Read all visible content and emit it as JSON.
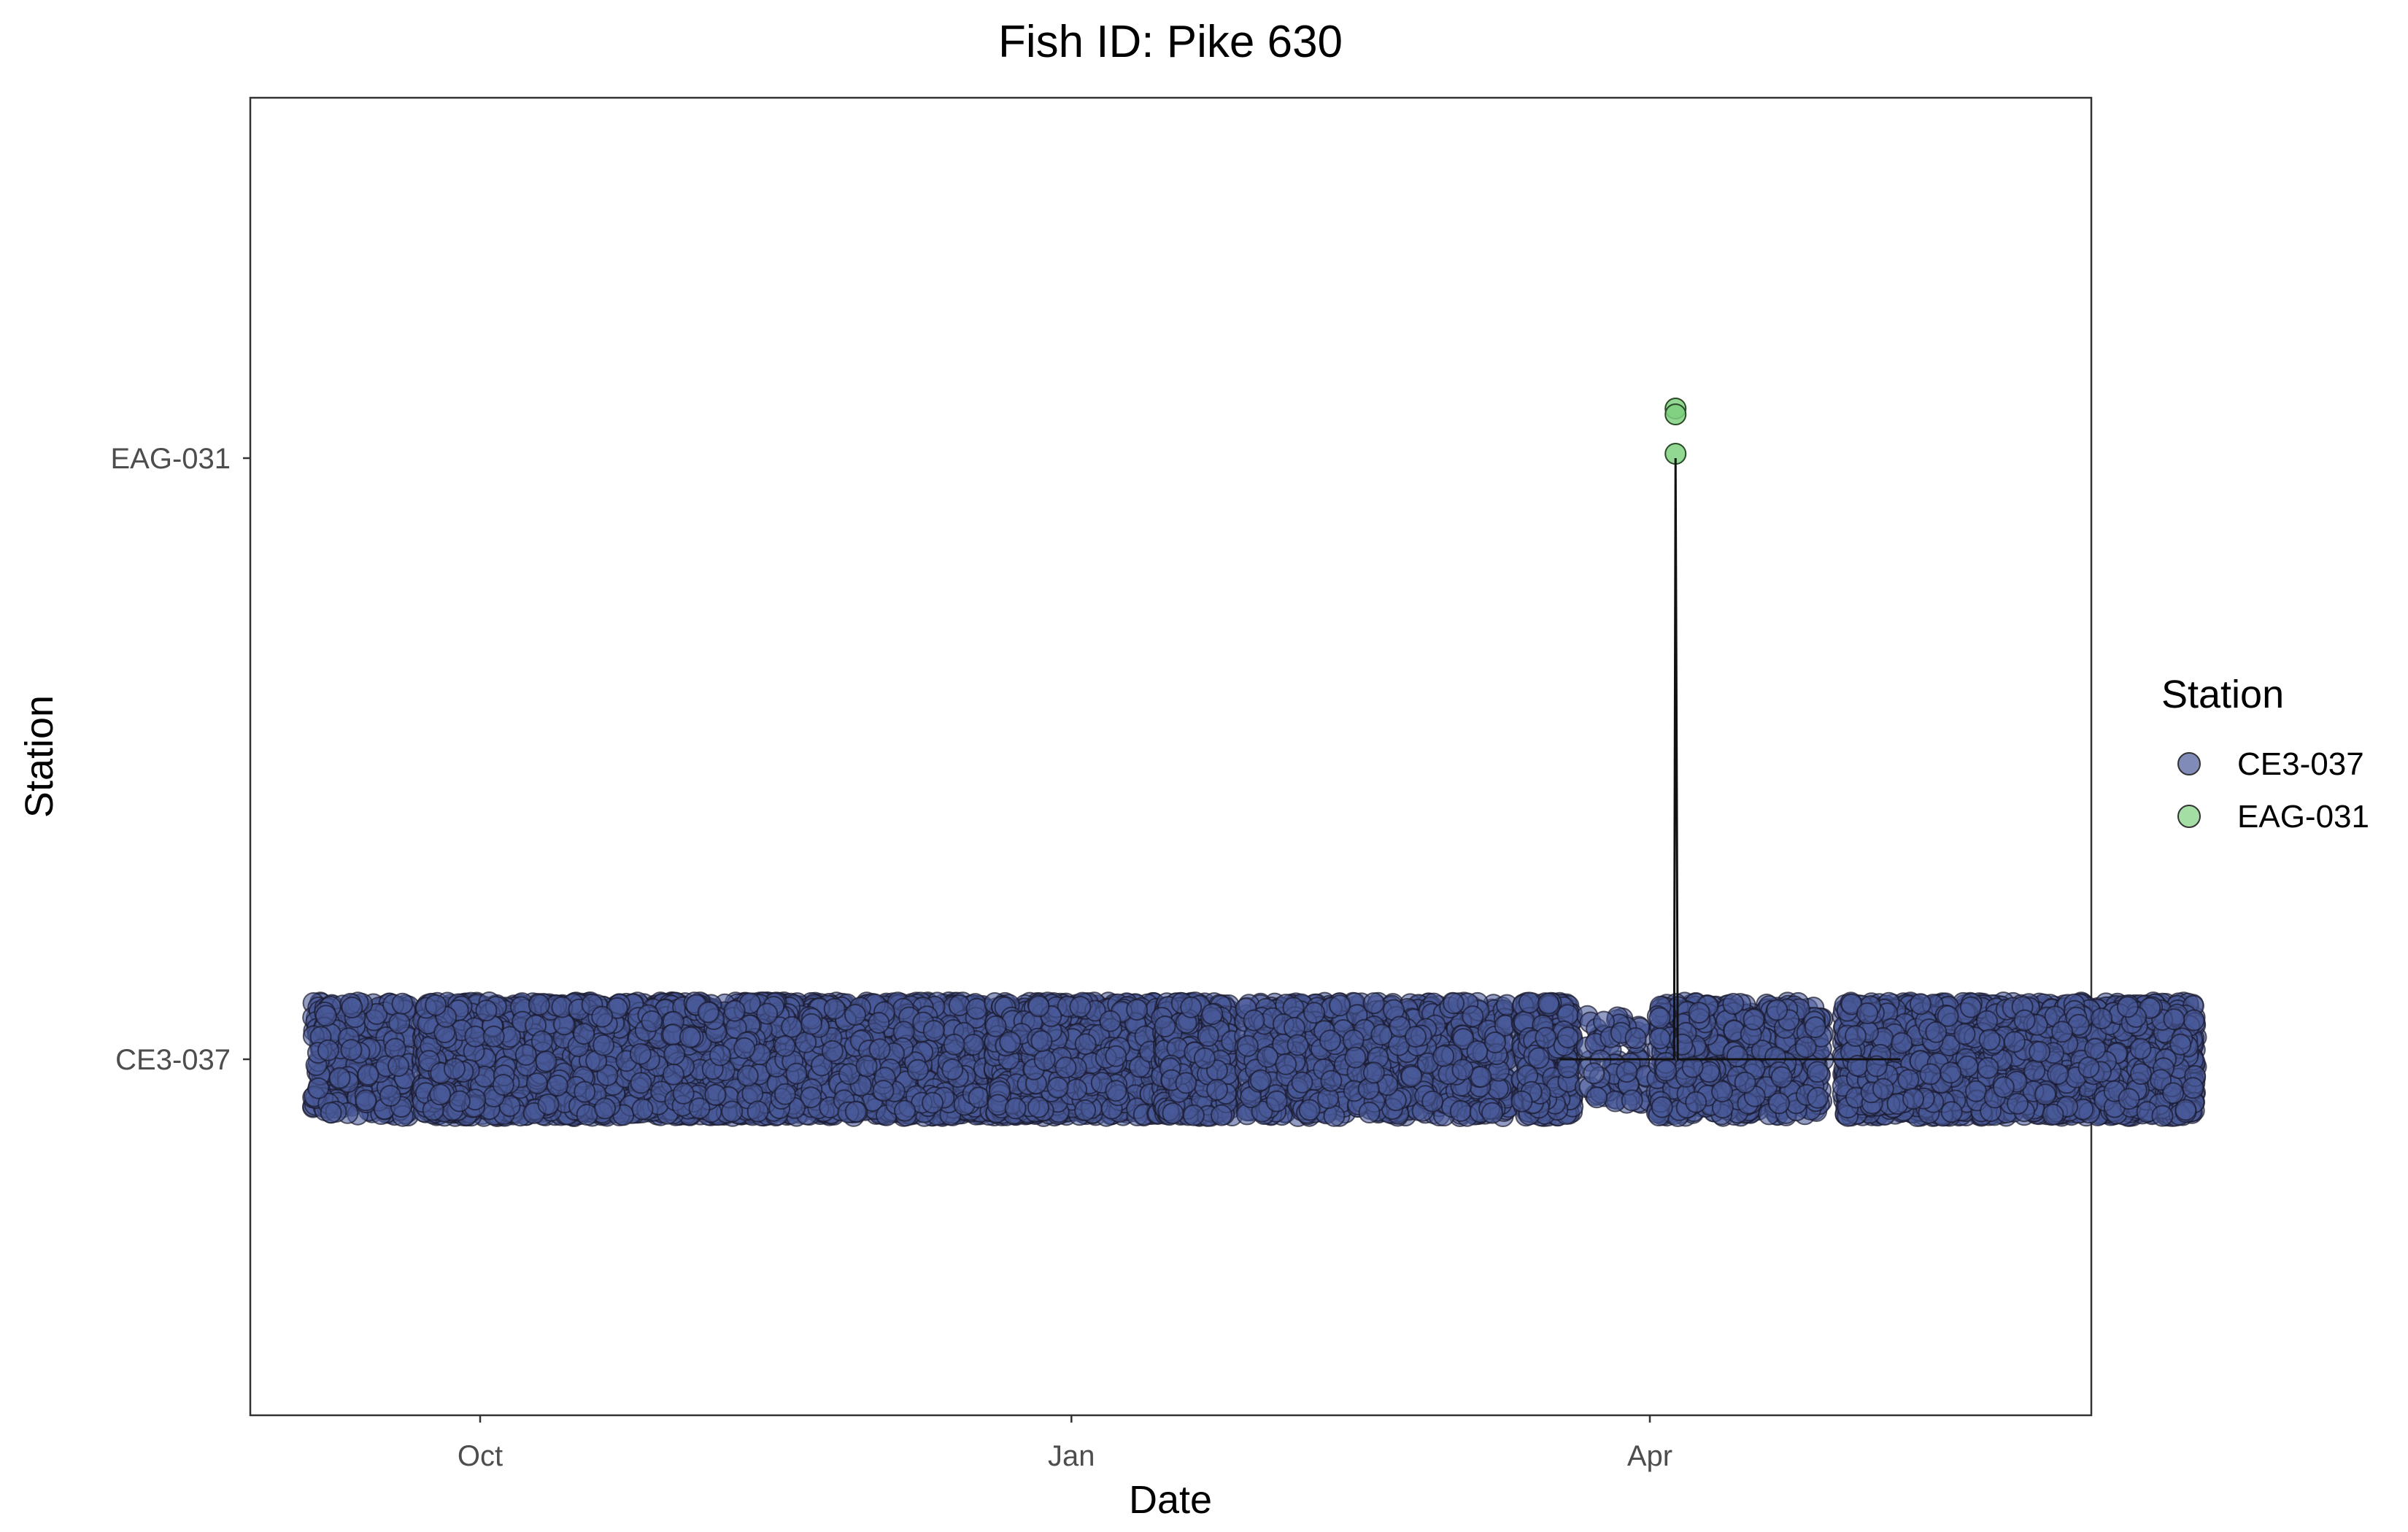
{
  "chart_data": {
    "type": "scatter",
    "title": "Fish ID: Pike 630",
    "xlabel": "Date",
    "ylabel": "Station",
    "x_axis": {
      "type": "date",
      "range": [
        "2022-08-20",
        "2022-06-24"
      ],
      "ticks": [
        {
          "date": "2022-10-01",
          "label": "Oct"
        },
        {
          "date": "2023-01-01",
          "label": "Jan"
        },
        {
          "date": "2023-04-01",
          "label": "Apr"
        }
      ]
    },
    "y_axis": {
      "type": "categorical",
      "categories": [
        "CE3-037",
        "EAG-031"
      ]
    },
    "grid": false,
    "legend": {
      "title": "Station",
      "position": "right",
      "entries": [
        {
          "label": "CE3-037",
          "color": "#4a5a9a"
        },
        {
          "label": "EAG-031",
          "color": "#7fd07f"
        }
      ]
    },
    "series": [
      {
        "name": "CE3-037",
        "color": "#4a5a9a",
        "detection_periods": [
          {
            "start": "2022-09-05",
            "end": "2022-09-20",
            "density": "medium"
          },
          {
            "start": "2022-09-22",
            "end": "2022-12-20",
            "density": "high"
          },
          {
            "start": "2022-12-20",
            "end": "2023-01-15",
            "density": "high"
          },
          {
            "start": "2023-01-15",
            "end": "2023-01-26",
            "density": "high"
          },
          {
            "start": "2023-01-28",
            "end": "2023-03-10",
            "density": "medium"
          },
          {
            "start": "2023-03-12",
            "end": "2023-03-20",
            "density": "high"
          },
          {
            "start": "2023-03-22",
            "end": "2023-04-01",
            "density": "low"
          },
          {
            "start": "2023-04-02",
            "end": "2023-04-28",
            "density": "medium"
          },
          {
            "start": "2023-05-01",
            "end": "2023-06-25",
            "density": "high"
          }
        ]
      },
      {
        "name": "EAG-031",
        "color": "#7fd07f",
        "points": [
          {
            "date": "2023-04-05",
            "station": "EAG-031"
          },
          {
            "date": "2023-04-05",
            "station": "EAG-031"
          },
          {
            "date": "2023-04-05",
            "station": "EAG-031"
          }
        ]
      }
    ]
  }
}
